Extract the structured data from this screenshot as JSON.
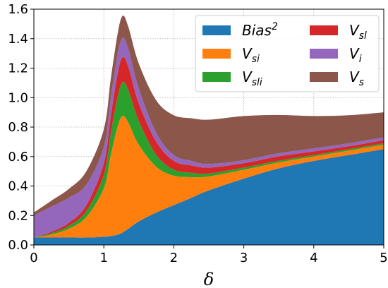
{
  "chart_data": {
    "type": "area",
    "stacked": true,
    "xlabel": "δ",
    "ylabel": "",
    "xlim": [
      0,
      5
    ],
    "ylim": [
      0,
      1.6
    ],
    "xticks": [
      0,
      1,
      2,
      3,
      4,
      5
    ],
    "yticks": [
      0.0,
      0.2,
      0.4,
      0.6,
      0.8,
      1.0,
      1.2,
      1.4,
      1.6
    ],
    "xtick_labels": [
      "0",
      "1",
      "2",
      "3",
      "4",
      "5"
    ],
    "ytick_labels": [
      "0.0",
      "0.2",
      "0.4",
      "0.6",
      "0.8",
      "1.0",
      "1.2",
      "1.4",
      "1.6"
    ],
    "grid": true,
    "legend_position": "top-right",
    "legend_columns": 2,
    "x": [
      0,
      0.25,
      0.5,
      0.75,
      1.0,
      1.1,
      1.2,
      1.27,
      1.35,
      1.5,
      1.75,
      2.0,
      2.25,
      2.5,
      3.0,
      3.5,
      4.0,
      4.5,
      5.0
    ],
    "series": [
      {
        "key": "bias2",
        "label_base": "Bias",
        "label_sup": "2",
        "label_sub": "",
        "color": "#1f77b4",
        "values": [
          0.05,
          0.05,
          0.05,
          0.05,
          0.055,
          0.06,
          0.07,
          0.085,
          0.11,
          0.16,
          0.22,
          0.27,
          0.32,
          0.37,
          0.45,
          0.52,
          0.57,
          0.61,
          0.65
        ]
      },
      {
        "key": "vsi",
        "label_base": "V",
        "label_sup": "",
        "label_sub": "si",
        "color": "#ff7f0e",
        "values": [
          0.0,
          0.02,
          0.06,
          0.14,
          0.33,
          0.55,
          0.74,
          0.79,
          0.72,
          0.52,
          0.31,
          0.2,
          0.14,
          0.095,
          0.06,
          0.04,
          0.03,
          0.03,
          0.03
        ]
      },
      {
        "key": "vsli",
        "label_base": "V",
        "label_sup": "",
        "label_sub": "sli",
        "color": "#2ca02c",
        "values": [
          0.0,
          0.01,
          0.02,
          0.04,
          0.09,
          0.15,
          0.2,
          0.23,
          0.22,
          0.16,
          0.08,
          0.04,
          0.03,
          0.02,
          0.015,
          0.012,
          0.01,
          0.01,
          0.01
        ]
      },
      {
        "key": "vsl",
        "label_base": "V",
        "label_sup": "",
        "label_sub": "sl",
        "color": "#d62728",
        "values": [
          0.0,
          0.01,
          0.02,
          0.04,
          0.08,
          0.12,
          0.16,
          0.17,
          0.16,
          0.12,
          0.09,
          0.06,
          0.05,
          0.04,
          0.03,
          0.03,
          0.025,
          0.02,
          0.02
        ]
      },
      {
        "key": "vi",
        "label_base": "V",
        "label_sup": "",
        "label_sub": "i",
        "color": "#9467bd",
        "values": [
          0.15,
          0.17,
          0.17,
          0.14,
          0.11,
          0.12,
          0.13,
          0.13,
          0.12,
          0.1,
          0.06,
          0.04,
          0.03,
          0.025,
          0.02,
          0.02,
          0.02,
          0.02,
          0.02
        ]
      },
      {
        "key": "vs",
        "label_base": "V",
        "label_sup": "",
        "label_sub": "s",
        "color": "#8c564b",
        "values": [
          0.02,
          0.04,
          0.06,
          0.09,
          0.12,
          0.13,
          0.14,
          0.15,
          0.15,
          0.17,
          0.22,
          0.27,
          0.29,
          0.3,
          0.3,
          0.26,
          0.22,
          0.19,
          0.17
        ]
      }
    ]
  }
}
